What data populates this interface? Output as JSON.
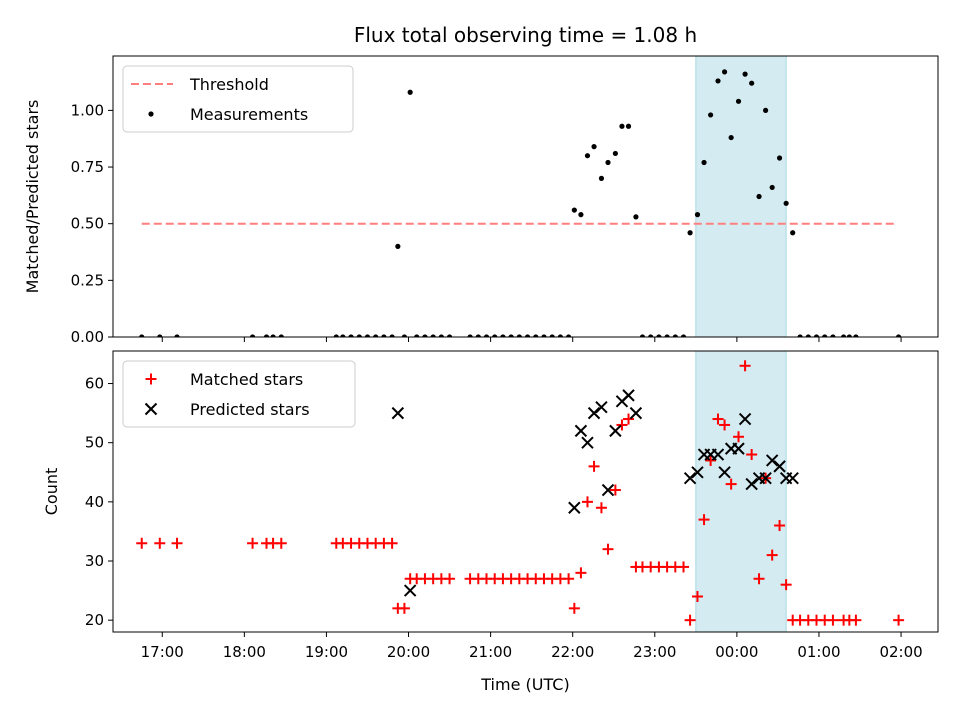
{
  "chart_data": [
    {
      "type": "scatter",
      "title": "Flux total observing time = 1.08 h",
      "xlabel": "",
      "ylabel": "Matched/Predicted stars",
      "xlim": [
        16.4,
        26.45
      ],
      "ylim": [
        0,
        1.24
      ],
      "yticks": [
        0.0,
        0.25,
        0.5,
        0.75,
        1.0
      ],
      "ytick_labels": [
        "0.00",
        "0.25",
        "0.50",
        "0.75",
        "1.00"
      ],
      "grid": false,
      "legend_position": "top-left",
      "highlight_span": [
        23.5,
        24.6
      ],
      "highlight_color": "#d4ebf1",
      "threshold": {
        "name": "Threshold",
        "y": 0.5,
        "x_range": [
          16.75,
          25.95
        ],
        "color": "#ff7f7f"
      },
      "series": [
        {
          "name": "Measurements",
          "color": "#000000",
          "marker": "dot",
          "points": [
            [
              16.75,
              0
            ],
            [
              16.97,
              0
            ],
            [
              17.18,
              0
            ],
            [
              18.1,
              0
            ],
            [
              18.27,
              0
            ],
            [
              18.35,
              0
            ],
            [
              18.45,
              0
            ],
            [
              19.12,
              0
            ],
            [
              19.2,
              0
            ],
            [
              19.3,
              0
            ],
            [
              19.4,
              0
            ],
            [
              19.5,
              0
            ],
            [
              19.6,
              0
            ],
            [
              19.7,
              0
            ],
            [
              19.8,
              0
            ],
            [
              19.87,
              0.4
            ],
            [
              19.95,
              0
            ],
            [
              20.02,
              1.08
            ],
            [
              20.1,
              0
            ],
            [
              20.2,
              0
            ],
            [
              20.3,
              0
            ],
            [
              20.4,
              0
            ],
            [
              20.5,
              0
            ],
            [
              20.75,
              0
            ],
            [
              20.85,
              0
            ],
            [
              20.95,
              0
            ],
            [
              21.05,
              0
            ],
            [
              21.15,
              0
            ],
            [
              21.25,
              0
            ],
            [
              21.35,
              0
            ],
            [
              21.45,
              0
            ],
            [
              21.55,
              0
            ],
            [
              21.65,
              0
            ],
            [
              21.75,
              0
            ],
            [
              21.85,
              0
            ],
            [
              21.95,
              0
            ],
            [
              22.02,
              0.56
            ],
            [
              22.1,
              0.54
            ],
            [
              22.18,
              0.8
            ],
            [
              22.26,
              0.84
            ],
            [
              22.35,
              0.7
            ],
            [
              22.43,
              0.77
            ],
            [
              22.52,
              0.81
            ],
            [
              22.6,
              0.93
            ],
            [
              22.68,
              0.93
            ],
            [
              22.77,
              0.53
            ],
            [
              22.85,
              0
            ],
            [
              22.95,
              0
            ],
            [
              23.05,
              0
            ],
            [
              23.15,
              0
            ],
            [
              23.25,
              0
            ],
            [
              23.35,
              0
            ],
            [
              23.43,
              0.46
            ],
            [
              23.52,
              0.54
            ],
            [
              23.6,
              0.77
            ],
            [
              23.68,
              0.98
            ],
            [
              23.77,
              1.13
            ],
            [
              23.85,
              1.17
            ],
            [
              23.93,
              0.88
            ],
            [
              24.02,
              1.04
            ],
            [
              24.1,
              1.16
            ],
            [
              24.18,
              1.12
            ],
            [
              24.27,
              0.62
            ],
            [
              24.35,
              1.0
            ],
            [
              24.43,
              0.66
            ],
            [
              24.52,
              0.79
            ],
            [
              24.6,
              0.59
            ],
            [
              24.68,
              0.46
            ],
            [
              24.77,
              0
            ],
            [
              24.87,
              0
            ],
            [
              24.97,
              0
            ],
            [
              25.07,
              0
            ],
            [
              25.17,
              0
            ],
            [
              25.3,
              0
            ],
            [
              25.37,
              0
            ],
            [
              25.45,
              0
            ],
            [
              25.97,
              0
            ]
          ]
        }
      ]
    },
    {
      "type": "scatter",
      "title": "",
      "xlabel": "Time (UTC)",
      "ylabel": "Count",
      "xlim": [
        16.4,
        26.45
      ],
      "ylim": [
        18,
        65.5
      ],
      "yticks": [
        20,
        30,
        40,
        50,
        60
      ],
      "ytick_labels": [
        "20",
        "30",
        "40",
        "50",
        "60"
      ],
      "xticks": [
        17,
        18,
        19,
        20,
        21,
        22,
        23,
        24,
        25,
        26
      ],
      "xtick_labels": [
        "17:00",
        "18:00",
        "19:00",
        "20:00",
        "21:00",
        "22:00",
        "23:00",
        "00:00",
        "01:00",
        "02:00"
      ],
      "grid": false,
      "legend_position": "top-left",
      "highlight_span": [
        23.5,
        24.6
      ],
      "highlight_color": "#d4ebf1",
      "series": [
        {
          "name": "Matched stars",
          "color": "#ff0000",
          "marker": "plus",
          "points": [
            [
              16.75,
              33
            ],
            [
              16.97,
              33
            ],
            [
              17.18,
              33
            ],
            [
              18.1,
              33
            ],
            [
              18.27,
              33
            ],
            [
              18.35,
              33
            ],
            [
              18.45,
              33
            ],
            [
              19.12,
              33
            ],
            [
              19.2,
              33
            ],
            [
              19.3,
              33
            ],
            [
              19.4,
              33
            ],
            [
              19.5,
              33
            ],
            [
              19.6,
              33
            ],
            [
              19.7,
              33
            ],
            [
              19.8,
              33
            ],
            [
              19.87,
              22
            ],
            [
              19.95,
              22
            ],
            [
              20.02,
              27
            ],
            [
              20.1,
              27
            ],
            [
              20.2,
              27
            ],
            [
              20.3,
              27
            ],
            [
              20.4,
              27
            ],
            [
              20.5,
              27
            ],
            [
              20.75,
              27
            ],
            [
              20.85,
              27
            ],
            [
              20.95,
              27
            ],
            [
              21.05,
              27
            ],
            [
              21.15,
              27
            ],
            [
              21.25,
              27
            ],
            [
              21.35,
              27
            ],
            [
              21.45,
              27
            ],
            [
              21.55,
              27
            ],
            [
              21.65,
              27
            ],
            [
              21.75,
              27
            ],
            [
              21.85,
              27
            ],
            [
              21.95,
              27
            ],
            [
              22.02,
              22
            ],
            [
              22.1,
              28
            ],
            [
              22.18,
              40
            ],
            [
              22.26,
              46
            ],
            [
              22.35,
              39
            ],
            [
              22.43,
              32
            ],
            [
              22.52,
              42
            ],
            [
              22.6,
              53
            ],
            [
              22.68,
              54
            ],
            [
              22.77,
              29
            ],
            [
              22.85,
              29
            ],
            [
              22.95,
              29
            ],
            [
              23.05,
              29
            ],
            [
              23.15,
              29
            ],
            [
              23.25,
              29
            ],
            [
              23.35,
              29
            ],
            [
              23.43,
              20
            ],
            [
              23.52,
              24
            ],
            [
              23.6,
              37
            ],
            [
              23.68,
              47
            ],
            [
              23.77,
              54
            ],
            [
              23.85,
              53
            ],
            [
              23.93,
              43
            ],
            [
              24.02,
              51
            ],
            [
              24.1,
              63
            ],
            [
              24.18,
              48
            ],
            [
              24.27,
              27
            ],
            [
              24.35,
              44
            ],
            [
              24.43,
              31
            ],
            [
              24.52,
              36
            ],
            [
              24.6,
              26
            ],
            [
              24.68,
              20
            ],
            [
              24.77,
              20
            ],
            [
              24.87,
              20
            ],
            [
              24.97,
              20
            ],
            [
              25.07,
              20
            ],
            [
              25.17,
              20
            ],
            [
              25.3,
              20
            ],
            [
              25.37,
              20
            ],
            [
              25.45,
              20
            ],
            [
              25.97,
              20
            ]
          ]
        },
        {
          "name": "Predicted stars",
          "color": "#000000",
          "marker": "x",
          "points": [
            [
              19.87,
              55
            ],
            [
              20.02,
              25
            ],
            [
              22.02,
              39
            ],
            [
              22.1,
              52
            ],
            [
              22.18,
              50
            ],
            [
              22.26,
              55
            ],
            [
              22.35,
              56
            ],
            [
              22.43,
              42
            ],
            [
              22.52,
              52
            ],
            [
              22.6,
              57
            ],
            [
              22.68,
              58
            ],
            [
              22.77,
              55
            ],
            [
              23.43,
              44
            ],
            [
              23.52,
              45
            ],
            [
              23.6,
              48
            ],
            [
              23.68,
              48
            ],
            [
              23.77,
              48
            ],
            [
              23.85,
              45
            ],
            [
              23.93,
              49
            ],
            [
              24.02,
              49
            ],
            [
              24.1,
              54
            ],
            [
              24.18,
              43
            ],
            [
              24.27,
              44
            ],
            [
              24.35,
              44
            ],
            [
              24.43,
              47
            ],
            [
              24.52,
              46
            ],
            [
              24.6,
              44
            ],
            [
              24.68,
              44
            ]
          ]
        }
      ]
    }
  ]
}
